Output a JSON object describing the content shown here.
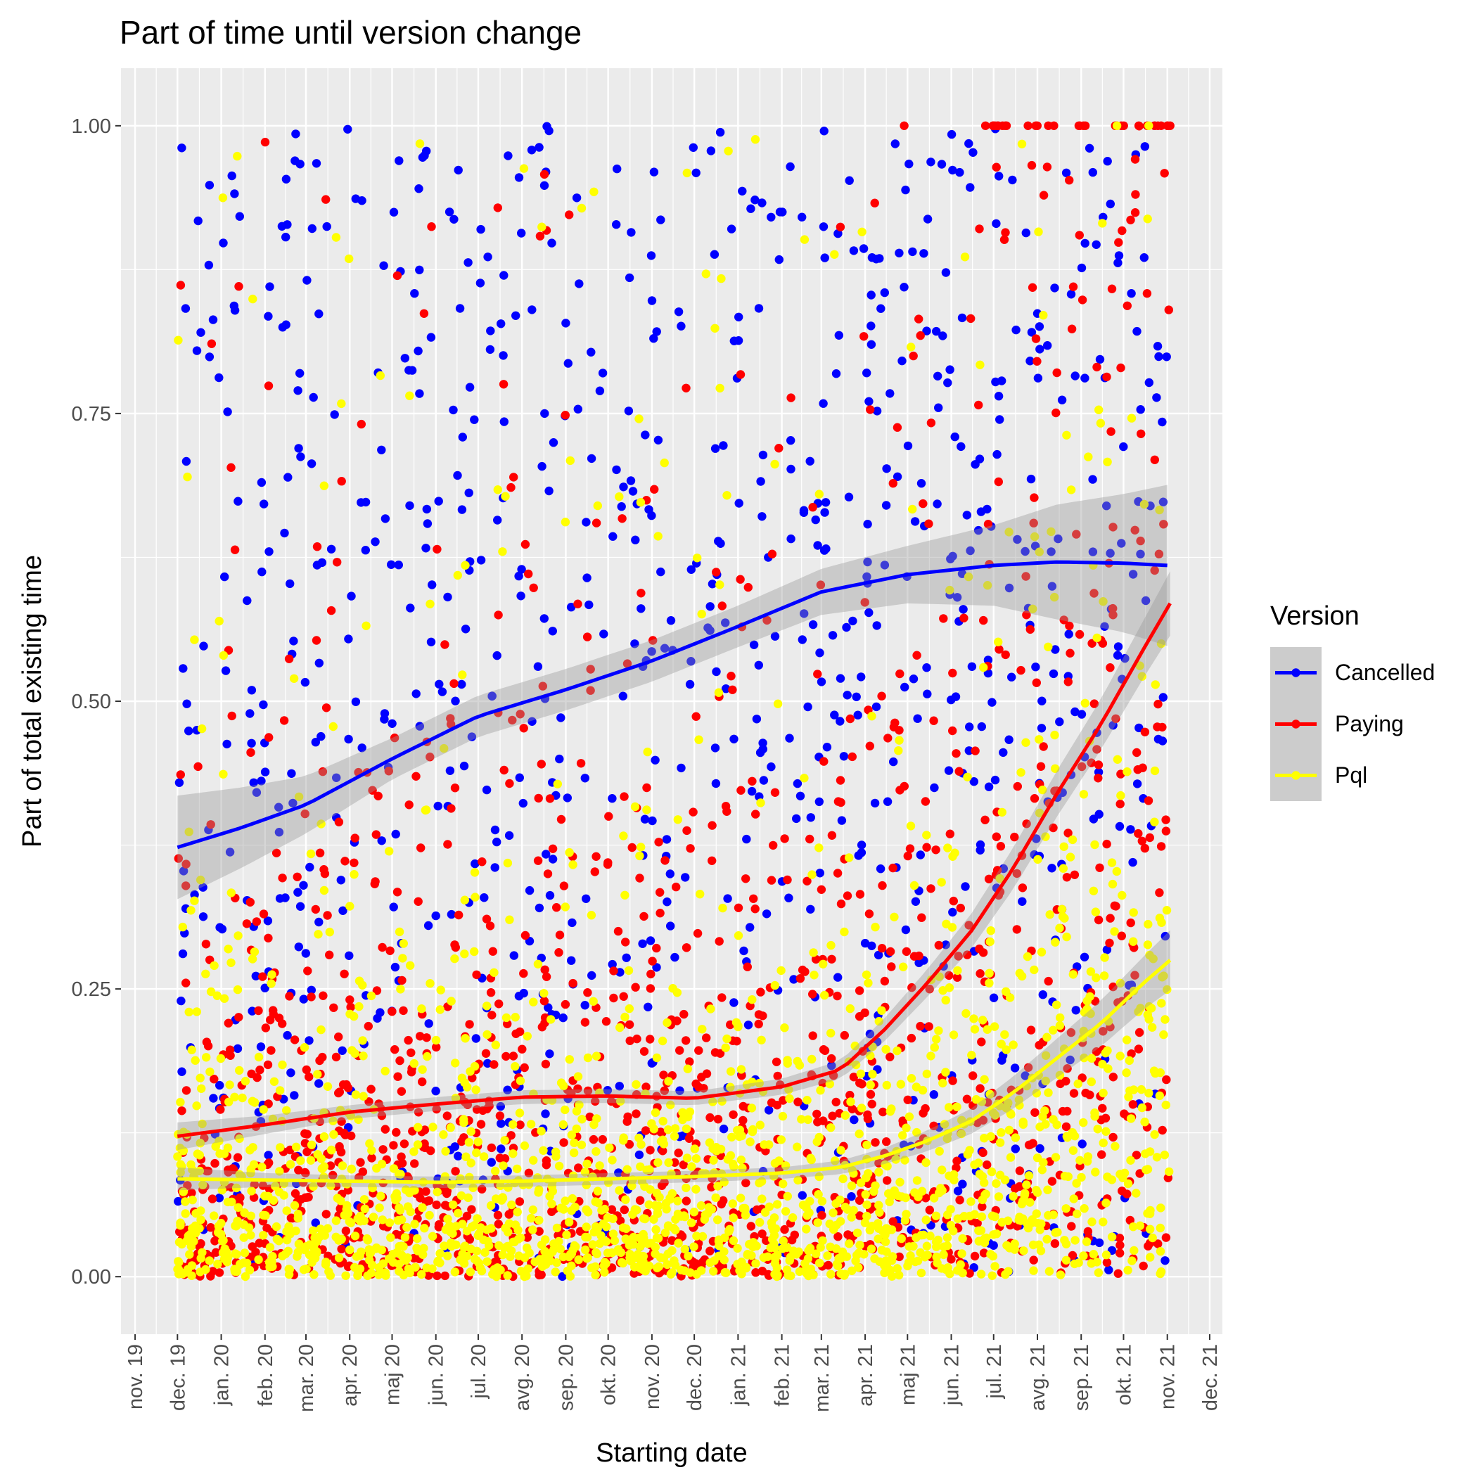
{
  "chart_data": {
    "type": "scatter",
    "title": "Part of time until version change",
    "xlabel": "Starting date",
    "ylabel": "Part of total existing time",
    "x_ticks": [
      "nov. 19",
      "dec. 19",
      "jan. 20",
      "feb. 20",
      "mar. 20",
      "apr. 20",
      "maj 20",
      "jun. 20",
      "jul. 20",
      "avg. 20",
      "sep. 20",
      "okt. 20",
      "nov. 20",
      "dec. 20",
      "jan. 21",
      "feb. 21",
      "mar. 21",
      "apr. 21",
      "maj 21",
      "jun. 21",
      "jul. 21",
      "avg. 21",
      "sep. 21",
      "okt. 21",
      "nov. 21",
      "dec. 21"
    ],
    "x_range": [
      "2019-10-22",
      "2021-12-10"
    ],
    "y_ticks": [
      "0.00",
      "0.25",
      "0.50",
      "0.75",
      "1.00"
    ],
    "ylim": [
      -0.05,
      1.05
    ],
    "grid": true,
    "legend": {
      "title": "Version",
      "position": "right"
    },
    "series": [
      {
        "name": "Cancelled",
        "color": "#0000ff",
        "point_density": "uniform 0–1 across dates, ending early Nov 2021",
        "smooth": {
          "x": [
            "2019-12-01",
            "2020-01-15",
            "2020-03-01",
            "2020-05-01",
            "2020-07-01",
            "2020-09-01",
            "2020-11-01",
            "2021-01-01",
            "2021-03-01",
            "2021-05-01",
            "2021-07-01",
            "2021-08-15",
            "2021-10-01",
            "2021-11-01"
          ],
          "y": [
            0.373,
            0.39,
            0.41,
            0.45,
            0.487,
            0.51,
            0.535,
            0.565,
            0.595,
            0.61,
            0.618,
            0.621,
            0.62,
            0.618
          ],
          "se": [
            0.045,
            0.035,
            0.025,
            0.018,
            0.018,
            0.018,
            0.018,
            0.018,
            0.02,
            0.025,
            0.035,
            0.05,
            0.06,
            0.07
          ]
        }
      },
      {
        "name": "Paying",
        "color": "#ff0000",
        "point_density": "concentrated 0–0.35 early, rising toward 1.0 late",
        "smooth": {
          "x": [
            "2019-12-01",
            "2020-02-01",
            "2020-04-01",
            "2020-06-01",
            "2020-08-01",
            "2020-10-01",
            "2020-12-01",
            "2021-02-01",
            "2021-03-15",
            "2021-04-15",
            "2021-05-15",
            "2021-06-15",
            "2021-07-15",
            "2021-08-15",
            "2021-09-15",
            "2021-10-15",
            "2021-11-03"
          ],
          "y": [
            0.122,
            0.132,
            0.143,
            0.15,
            0.156,
            0.157,
            0.155,
            0.165,
            0.18,
            0.215,
            0.255,
            0.3,
            0.355,
            0.42,
            0.48,
            0.545,
            0.585
          ],
          "se": [
            0.012,
            0.008,
            0.006,
            0.006,
            0.006,
            0.006,
            0.006,
            0.007,
            0.008,
            0.01,
            0.012,
            0.015,
            0.018,
            0.02,
            0.022,
            0.025,
            0.028
          ]
        }
      },
      {
        "name": "Pql",
        "color": "#ffff00",
        "point_density": "dense near 0–0.15, spreading higher late",
        "smooth": {
          "x": [
            "2019-12-01",
            "2020-02-01",
            "2020-04-01",
            "2020-06-01",
            "2020-08-01",
            "2020-10-01",
            "2020-12-01",
            "2021-02-01",
            "2021-03-15",
            "2021-04-15",
            "2021-05-15",
            "2021-06-15",
            "2021-07-15",
            "2021-08-15",
            "2021-09-15",
            "2021-10-15",
            "2021-11-03"
          ],
          "y": [
            0.085,
            0.084,
            0.083,
            0.082,
            0.083,
            0.085,
            0.087,
            0.09,
            0.095,
            0.105,
            0.118,
            0.135,
            0.16,
            0.19,
            0.22,
            0.255,
            0.275
          ],
          "se": [
            0.01,
            0.006,
            0.005,
            0.005,
            0.005,
            0.005,
            0.005,
            0.005,
            0.006,
            0.007,
            0.009,
            0.011,
            0.014,
            0.017,
            0.02,
            0.023,
            0.026
          ]
        }
      }
    ]
  }
}
